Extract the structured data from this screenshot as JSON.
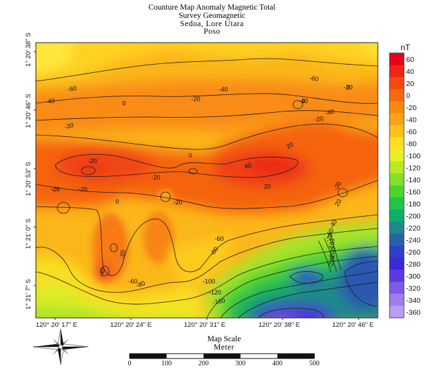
{
  "title_lines": [
    "Counture Map Anomaly Magnetic Total",
    "Survey Geomagnetic",
    "Sedoa, Lore Utara",
    "Poso"
  ],
  "colorbar": {
    "unit": "nT",
    "ticks": [
      "60",
      "40",
      "20",
      "0",
      "-20",
      "-40",
      "-60",
      "-80",
      "-100",
      "-120",
      "-140",
      "-160",
      "-180",
      "-200",
      "-220",
      "-240",
      "-260",
      "-280",
      "-300",
      "-320",
      "-340",
      "-360"
    ],
    "colors": [
      "#e8001a",
      "#ef2412",
      "#f44a10",
      "#f76a0e",
      "#f98a10",
      "#fba516",
      "#fdc21c",
      "#ffdf22",
      "#e7f024",
      "#b6ea22",
      "#84e028",
      "#4dd52e",
      "#1dc648",
      "#10ae6c",
      "#1f8a8c",
      "#2a62a8",
      "#3040c8",
      "#3a2ad8",
      "#5a3ae0",
      "#7e5ae6",
      "#a07cec",
      "#bc9cf2"
    ]
  },
  "lat_labels": [
    "1° 20' 38\" S",
    "1° 20' 46\" S",
    "1° 20' 53\" S",
    "1° 21' 0\" S",
    "1° 21' 7\" S"
  ],
  "lon_labels": [
    "120° 20' 17\" E",
    "120° 20' 24\" E",
    "120° 20' 31\" E",
    "120° 20' 38\" E",
    "120° 20' 46\" E"
  ],
  "contour_labels": [
    "-60",
    "-40",
    "-60",
    "-40",
    "-20",
    "-40",
    "-20",
    "-20",
    "-20",
    "0",
    "0",
    "-20",
    "-20",
    "0",
    "20",
    "40",
    "20",
    "-20",
    "0",
    "-20",
    "-20",
    "20",
    "-20",
    "-40",
    "0",
    "-20",
    "-40",
    "-60",
    "-80",
    "-20",
    "-40",
    "-60",
    "-80",
    "-100",
    "-120",
    "-160",
    "-20",
    "-60",
    "-180",
    "-200",
    "-220"
  ],
  "scale": {
    "title": "Map Scale",
    "unit": "Meter",
    "labels": [
      "0",
      "100",
      "200",
      "300",
      "400",
      "500"
    ]
  },
  "north_arrow": {
    "icon": "compass-rose-icon"
  }
}
